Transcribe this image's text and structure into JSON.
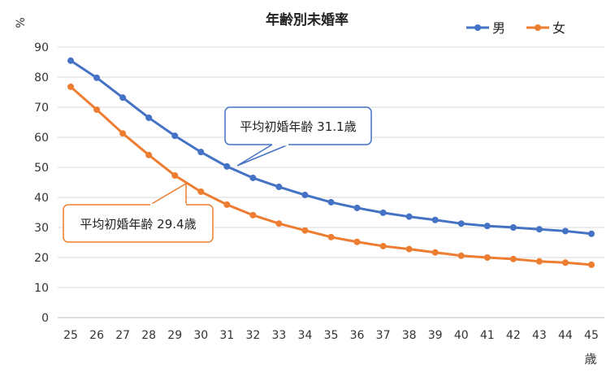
{
  "chart_data": {
    "type": "line",
    "title": "年齢別未婚率",
    "ylabel": "%",
    "xlabel": "歳",
    "x": [
      25,
      26,
      27,
      28,
      29,
      30,
      31,
      32,
      33,
      34,
      35,
      36,
      37,
      38,
      39,
      40,
      41,
      42,
      43,
      44,
      45
    ],
    "ylim": [
      0,
      90
    ],
    "yticks": [
      0,
      10,
      20,
      30,
      40,
      50,
      60,
      70,
      80,
      90
    ],
    "grid": true,
    "legend_position": "top-right",
    "series": [
      {
        "name": "男",
        "color": "#4472C4",
        "values": [
          85.5,
          79.8,
          73.2,
          66.5,
          60.5,
          55.1,
          50.3,
          46.5,
          43.5,
          40.8,
          38.4,
          36.5,
          34.9,
          33.6,
          32.5,
          31.3,
          30.5,
          30.0,
          29.4,
          28.8,
          27.9
        ]
      },
      {
        "name": "女",
        "color": "#ED7D31",
        "values": [
          76.8,
          69.2,
          61.3,
          54.1,
          47.3,
          41.9,
          37.6,
          34.1,
          31.3,
          29.0,
          26.8,
          25.2,
          23.8,
          22.8,
          21.7,
          20.6,
          20.0,
          19.5,
          18.7,
          18.3,
          17.6
        ]
      }
    ],
    "annotations": [
      {
        "text": "平均初婚年齢 31.1歳",
        "series": "男",
        "x": 31.1,
        "y": 50,
        "color": "#4472C4"
      },
      {
        "text": "平均初婚年齢 29.4歳",
        "series": "女",
        "x": 29.4,
        "y": 44,
        "color": "#ED7D31"
      }
    ]
  }
}
